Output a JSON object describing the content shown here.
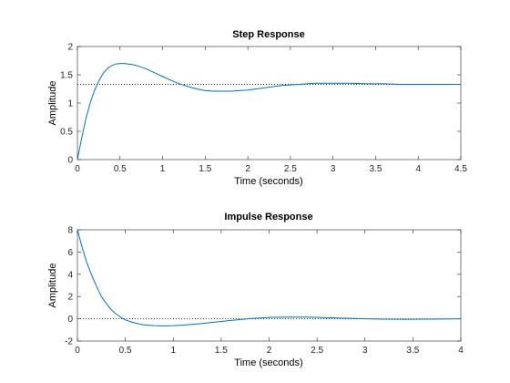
{
  "chart_data": [
    {
      "type": "line",
      "title": "Step Response",
      "xlabel": "Time (seconds)",
      "ylabel": "Amplitude",
      "xlim": [
        0,
        4.5
      ],
      "ylim": [
        0,
        2
      ],
      "xticks": [
        "0",
        "0.5",
        "1",
        "1.5",
        "2",
        "2.5",
        "3",
        "3.5",
        "4",
        "4.5"
      ],
      "yticks": [
        "0",
        "0.5",
        "1",
        "1.5",
        "2"
      ],
      "steady_state": 1.33,
      "grid": false,
      "series": [
        {
          "color": "#0072bd",
          "x": [
            0,
            0.05,
            0.1,
            0.15,
            0.2,
            0.25,
            0.3,
            0.35,
            0.4,
            0.45,
            0.5,
            0.55,
            0.6,
            0.65,
            0.7,
            0.8,
            0.9,
            1.0,
            1.1,
            1.2,
            1.3,
            1.4,
            1.5,
            1.6,
            1.7,
            1.8,
            1.9,
            2.0,
            2.2,
            2.4,
            2.6,
            2.8,
            3.0,
            3.2,
            3.4,
            3.6,
            3.8,
            4.0,
            4.2,
            4.5
          ],
          "y": [
            0,
            0.38,
            0.73,
            1.0,
            1.22,
            1.39,
            1.52,
            1.61,
            1.66,
            1.69,
            1.7,
            1.7,
            1.69,
            1.68,
            1.66,
            1.61,
            1.54,
            1.47,
            1.4,
            1.34,
            1.29,
            1.25,
            1.22,
            1.21,
            1.21,
            1.21,
            1.22,
            1.23,
            1.27,
            1.31,
            1.33,
            1.35,
            1.35,
            1.35,
            1.34,
            1.34,
            1.33,
            1.33,
            1.33,
            1.33
          ]
        }
      ]
    },
    {
      "type": "line",
      "title": "Impulse Response",
      "xlabel": "Time (seconds)",
      "ylabel": "Amplitude",
      "xlim": [
        0,
        4
      ],
      "ylim": [
        -2,
        8
      ],
      "xticks": [
        "0",
        "0.5",
        "1",
        "1.5",
        "2",
        "2.5",
        "3",
        "3.5",
        "4"
      ],
      "yticks": [
        "-2",
        "0",
        "2",
        "4",
        "6",
        "8"
      ],
      "steady_state": 0,
      "grid": false,
      "series": [
        {
          "color": "#0072bd",
          "x": [
            0,
            0.05,
            0.1,
            0.15,
            0.2,
            0.25,
            0.3,
            0.35,
            0.4,
            0.45,
            0.5,
            0.55,
            0.6,
            0.7,
            0.8,
            0.9,
            1.0,
            1.1,
            1.2,
            1.4,
            1.6,
            1.8,
            2.0,
            2.2,
            2.4,
            2.6,
            2.8,
            3.0,
            3.2,
            3.4,
            3.6,
            3.8,
            4.0
          ],
          "y": [
            8,
            6.4,
            5.0,
            3.9,
            2.9,
            2.0,
            1.4,
            0.85,
            0.45,
            0.15,
            -0.1,
            -0.25,
            -0.38,
            -0.55,
            -0.62,
            -0.64,
            -0.62,
            -0.57,
            -0.5,
            -0.33,
            -0.15,
            0.02,
            0.12,
            0.15,
            0.15,
            0.1,
            0.05,
            0.0,
            -0.03,
            -0.04,
            -0.03,
            -0.02,
            0.0
          ]
        }
      ]
    }
  ]
}
